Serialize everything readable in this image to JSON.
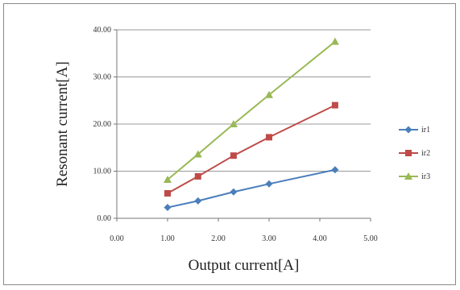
{
  "chart_data": {
    "type": "line",
    "xlabel": "Output current[A]",
    "ylabel": "Resonant current[A]",
    "xlim": [
      0,
      5
    ],
    "ylim": [
      0,
      40
    ],
    "x_ticks": [
      "0.00",
      "1.00",
      "2.00",
      "3.00",
      "4.00",
      "5.00"
    ],
    "y_ticks": [
      "0.00",
      "10.00",
      "20.00",
      "30.00",
      "40.00"
    ],
    "grid": "horizontal",
    "legend_position": "right",
    "x": [
      1.0,
      1.6,
      2.3,
      3.0,
      4.3
    ],
    "series": [
      {
        "name": "ir1",
        "marker": "diamond",
        "color": "#4a7ebb",
        "values": [
          2.3,
          3.7,
          5.6,
          7.3,
          10.3
        ]
      },
      {
        "name": "ir2",
        "marker": "square",
        "color": "#be4b48",
        "values": [
          5.3,
          8.9,
          13.3,
          17.2,
          24.0
        ]
      },
      {
        "name": "ir3",
        "marker": "triangle",
        "color": "#98b954",
        "values": [
          8.2,
          13.6,
          20.0,
          26.2,
          37.5
        ]
      }
    ]
  }
}
